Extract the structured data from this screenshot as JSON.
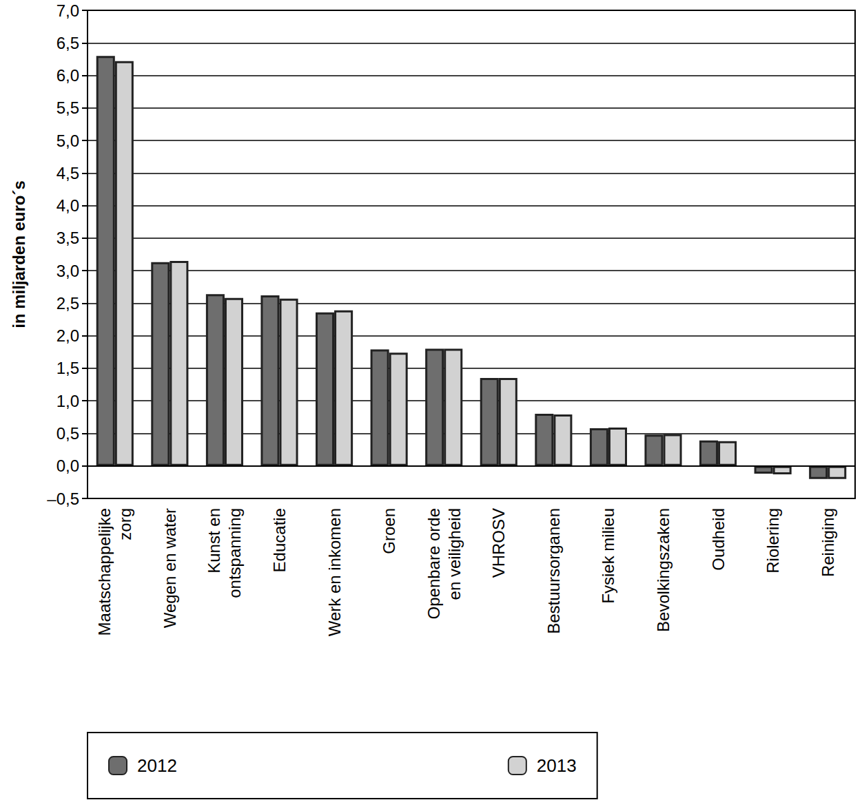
{
  "chart_data": {
    "type": "bar",
    "y_label": "in miljarden euro´s",
    "categories": [
      "Maatschappelijke\nzorg",
      "Wegen en water",
      "Kunst en\nontspanning",
      "Educatie",
      "Werk en inkomen",
      "Groen",
      "Openbare orde\nen veiligheid",
      "VHROSV",
      "Bestuursorganen",
      "Fysiek milieu",
      "Bevolkingszaken",
      "Oudheid",
      "Riolering",
      "Reiniging"
    ],
    "series": [
      {
        "name": "2012",
        "color": "#6e6e6e",
        "values": [
          6.3,
          3.13,
          2.64,
          2.62,
          2.36,
          1.79,
          1.8,
          1.35,
          0.8,
          0.58,
          0.48,
          0.39,
          -0.12,
          -0.2
        ]
      },
      {
        "name": "2013",
        "color": "#d2d2d2",
        "values": [
          6.22,
          3.15,
          2.58,
          2.57,
          2.39,
          1.74,
          1.8,
          1.35,
          0.79,
          0.59,
          0.49,
          0.38,
          -0.13,
          -0.2
        ]
      }
    ],
    "ylim": [
      -0.5,
      7.0
    ],
    "yticks": [
      {
        "value": -0.5,
        "label": "–0,5"
      },
      {
        "value": 0,
        "label": "0,0"
      },
      {
        "value": 0.5,
        "label": "0,5"
      },
      {
        "value": 1.0,
        "label": "1,0"
      },
      {
        "value": 1.5,
        "label": "1,5"
      },
      {
        "value": 2.0,
        "label": "2,0"
      },
      {
        "value": 2.5,
        "label": "2,5"
      },
      {
        "value": 3.0,
        "label": "3,0"
      },
      {
        "value": 3.5,
        "label": "3,5"
      },
      {
        "value": 4.0,
        "label": "4,0"
      },
      {
        "value": 4.5,
        "label": "4,5"
      },
      {
        "value": 5.0,
        "label": "5,0"
      },
      {
        "value": 5.5,
        "label": "5,5"
      },
      {
        "value": 6.0,
        "label": "6,0"
      },
      {
        "value": 6.5,
        "label": "6,5"
      },
      {
        "value": 7.0,
        "label": "7,0"
      }
    ],
    "grid": true,
    "legend": "bottom"
  }
}
